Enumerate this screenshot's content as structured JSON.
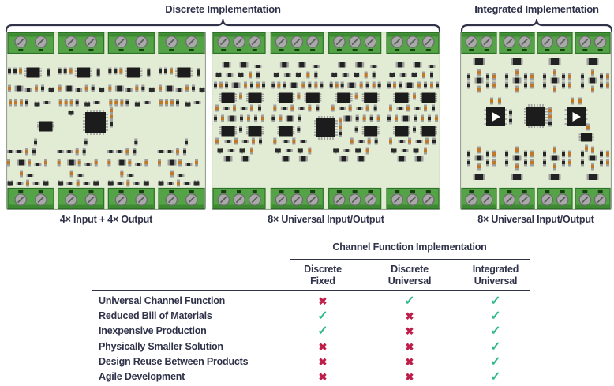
{
  "colors": {
    "text": "#2f3249",
    "check": "#2fb987",
    "cross": "#bf1e4b",
    "board_bg": "#e2ecd4",
    "board_border": "#98a294",
    "terminal_green": "#54a447",
    "terminal_dark": "#3e8a33",
    "terminal_border": "#2c7125",
    "screw": "#a9a9a9",
    "part_black": "#262626",
    "part_orange": "#c07828",
    "part_cap": "#9f9f9f",
    "chip_black": "#1c1c1c"
  },
  "headers": {
    "discrete": "Discrete Implementation",
    "integrated": "Integrated Implementation"
  },
  "boards": [
    {
      "id": "discrete-fixed",
      "style": "fixed",
      "caption": "4× Input + 4× Output"
    },
    {
      "id": "discrete-universal",
      "style": "universal",
      "caption": "8× Universal Input/Output"
    },
    {
      "id": "integrated-universal",
      "style": "integrated",
      "caption": "8× Universal Input/Output"
    }
  ],
  "table": {
    "title": "Channel Function Implementation",
    "columns": [
      [
        "Discrete",
        "Fixed"
      ],
      [
        "Discrete",
        "Universal"
      ],
      [
        "Integrated",
        "Universal"
      ]
    ],
    "marks": {
      "yes": "✓",
      "no": "✖"
    },
    "rows": [
      {
        "label": "Universal Channel Function",
        "values": [
          "no",
          "yes",
          "yes"
        ]
      },
      {
        "label": "Reduced Bill of Materials",
        "values": [
          "yes",
          "no",
          "yes"
        ]
      },
      {
        "label": "Inexpensive Production",
        "values": [
          "yes",
          "no",
          "yes"
        ]
      },
      {
        "label": "Physically Smaller Solution",
        "values": [
          "no",
          "no",
          "yes"
        ]
      },
      {
        "label": "Design Reuse Between Products",
        "values": [
          "no",
          "no",
          "yes"
        ]
      },
      {
        "label": "Agile Development",
        "values": [
          "no",
          "no",
          "yes"
        ]
      }
    ]
  }
}
